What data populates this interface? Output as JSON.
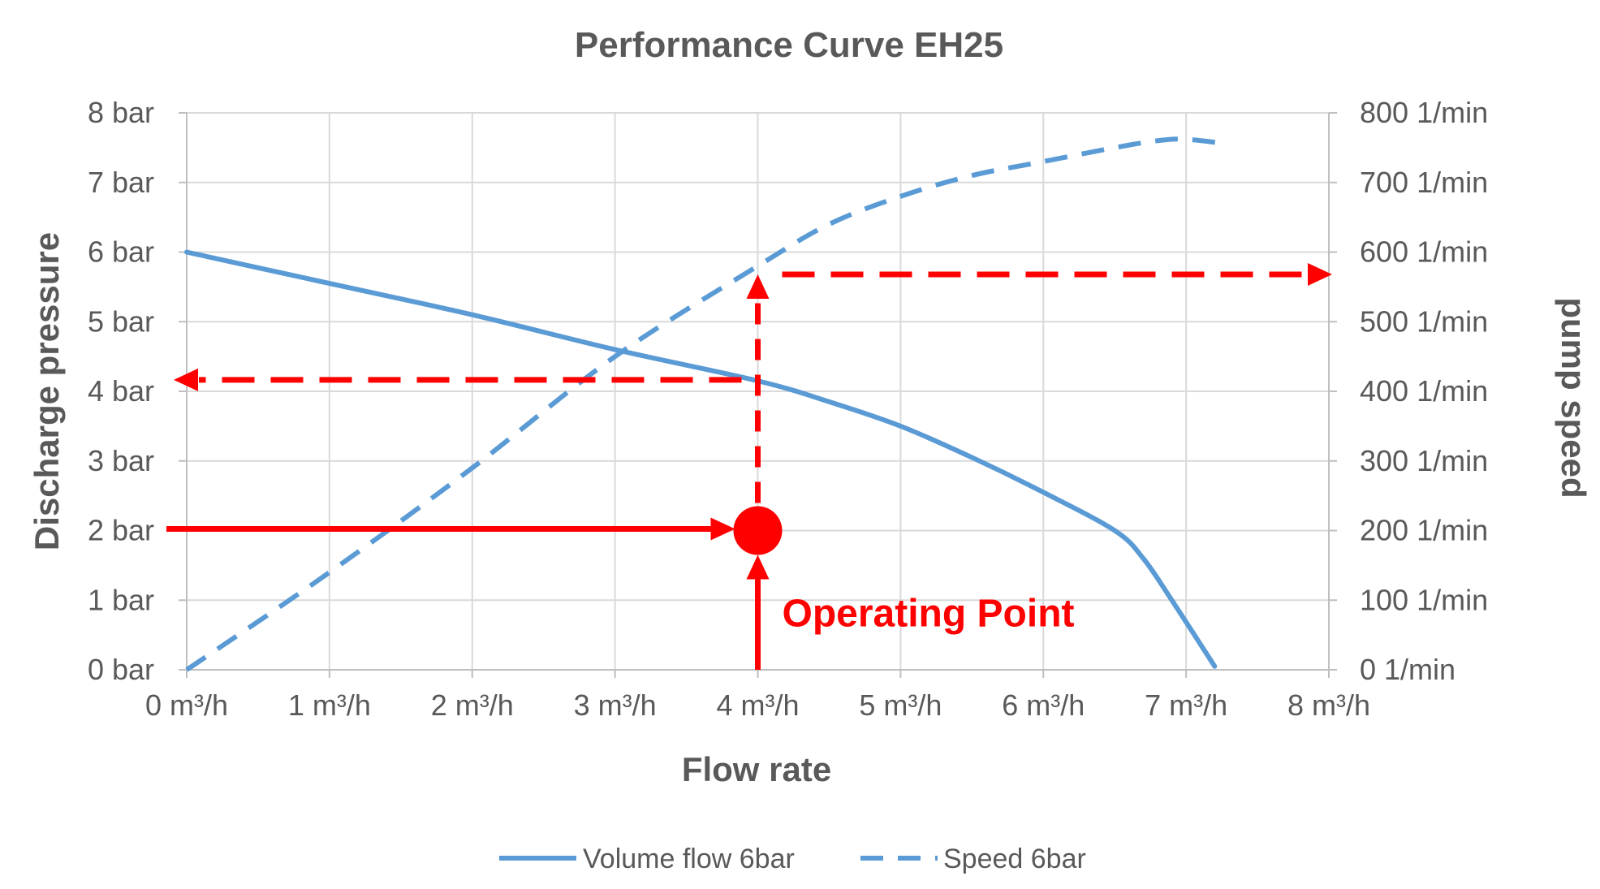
{
  "chart_data": {
    "type": "line",
    "title": "Performance Curve EH25",
    "xlabel": "Flow rate",
    "ylabel": "Discharge pressure",
    "y2label": "pump speed",
    "xlim": [
      0,
      8
    ],
    "ylim": [
      0,
      8
    ],
    "y2lim": [
      0,
      800
    ],
    "x_ticks": [
      0,
      1,
      2,
      3,
      4,
      5,
      6,
      7,
      8
    ],
    "x_tick_labels": [
      "0 m³/h",
      "1 m³/h",
      "2 m³/h",
      "3 m³/h",
      "4 m³/h",
      "5 m³/h",
      "6 m³/h",
      "7 m³/h",
      "8 m³/h"
    ],
    "y_ticks": [
      0,
      1,
      2,
      3,
      4,
      5,
      6,
      7,
      8
    ],
    "y_tick_labels": [
      "0 bar",
      "1 bar",
      "2 bar",
      "3 bar",
      "4 bar",
      "5 bar",
      "6 bar",
      "7 bar",
      "8 bar"
    ],
    "y2_ticks": [
      0,
      100,
      200,
      300,
      400,
      500,
      600,
      700,
      800
    ],
    "y2_tick_labels": [
      "0 1/min",
      "100 1/min",
      "200 1/min",
      "300 1/min",
      "400 1/min",
      "500 1/min",
      "600 1/min",
      "700 1/min",
      "800 1/min"
    ],
    "grid": true,
    "legend_position": "bottom",
    "series": [
      {
        "name": "Volume flow 6bar",
        "axis": "left",
        "style": "solid",
        "color": "#5b9bd5",
        "x": [
          0,
          1,
          2,
          3,
          4,
          4.5,
          5,
          5.5,
          6,
          6.5,
          6.7,
          6.9,
          7.2
        ],
        "y": [
          6.0,
          5.55,
          5.1,
          4.6,
          4.15,
          3.85,
          3.5,
          3.05,
          2.55,
          2.0,
          1.6,
          1.0,
          0.05
        ]
      },
      {
        "name": "Speed 6bar",
        "axis": "right",
        "style": "dashed",
        "color": "#5b9bd5",
        "x": [
          0,
          1,
          2,
          3,
          4,
          4.5,
          5,
          5.5,
          6,
          6.5,
          6.8,
          7.0,
          7.3
        ],
        "y": [
          0,
          140,
          290,
          450,
          580,
          640,
          680,
          710,
          730,
          750,
          760,
          762,
          755
        ]
      }
    ],
    "operating_point": {
      "x": 4,
      "y": 2,
      "label": "Operating Point",
      "color": "#ff0000"
    },
    "annotations": {
      "pressure_readout_bar": 4.2,
      "speed_readout_rpm": 575
    }
  }
}
